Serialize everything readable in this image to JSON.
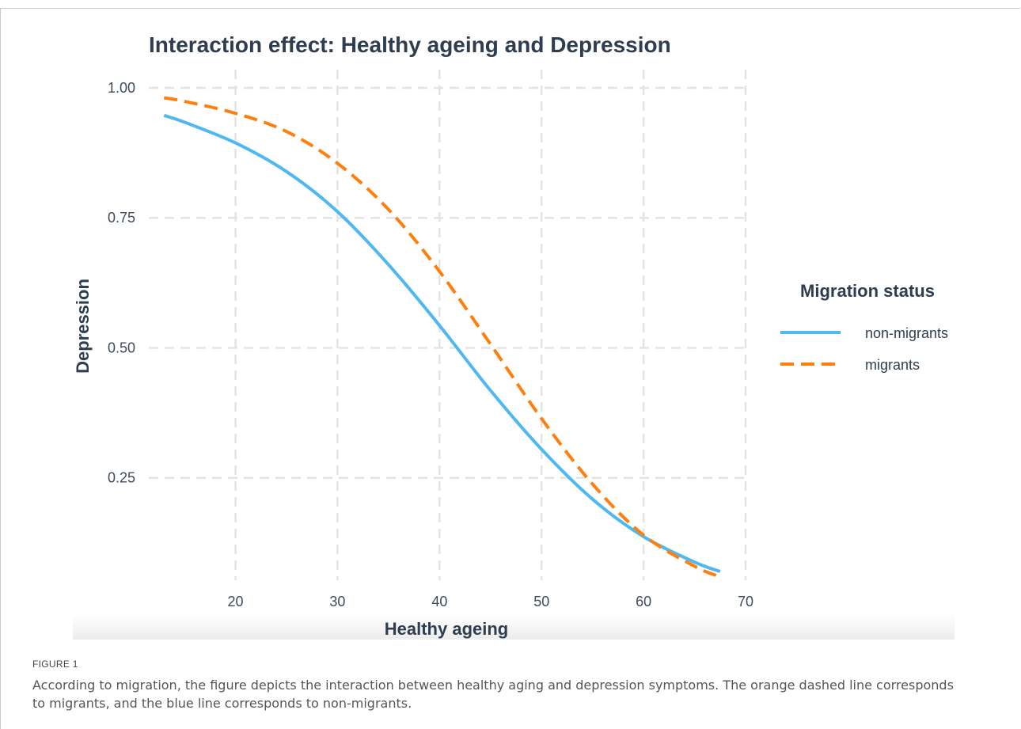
{
  "figure_label": "FIGURE 1",
  "caption": "According to migration, the figure depicts the interaction between healthy aging and depression symptoms. The orange dashed line corresponds to migrants, and the blue line corresponds to non-migrants.",
  "chart_data": {
    "type": "line",
    "title": "Interaction effect: Healthy ageing and Depression",
    "xlabel": "Healthy ageing",
    "ylabel": "Depression",
    "xlim": [
      11.5,
      70
    ],
    "ylim": [
      0.035,
      1.035
    ],
    "x_ticks": [
      20,
      30,
      40,
      50,
      60,
      70
    ],
    "y_ticks": [
      0.25,
      0.5,
      0.75,
      1.0
    ],
    "y_tick_labels": [
      "0.25",
      "0.50",
      "0.75",
      "1.00"
    ],
    "grid": true,
    "legend": {
      "title": "Migration status",
      "placement": "right"
    },
    "colors": {
      "non_migrants": "#4FB8F0",
      "migrants": "#FF7F0E",
      "text": "#2E3E50",
      "grid": "#E3E3E3"
    },
    "series": [
      {
        "name": "non-migrants",
        "style": "solid",
        "x": [
          13,
          15,
          20,
          25,
          30,
          35,
          40,
          45,
          50,
          55,
          60,
          65,
          67.5
        ],
        "y": [
          0.947,
          0.934,
          0.894,
          0.839,
          0.762,
          0.66,
          0.543,
          0.418,
          0.305,
          0.209,
          0.137,
          0.088,
          0.07
        ]
      },
      {
        "name": "migrants",
        "style": "dashed",
        "x": [
          13,
          15,
          20,
          25,
          30,
          35,
          40,
          45,
          50,
          55,
          60,
          65,
          67.5
        ],
        "y": [
          0.981,
          0.974,
          0.951,
          0.916,
          0.855,
          0.766,
          0.647,
          0.507,
          0.364,
          0.238,
          0.14,
          0.08,
          0.06
        ]
      }
    ]
  }
}
